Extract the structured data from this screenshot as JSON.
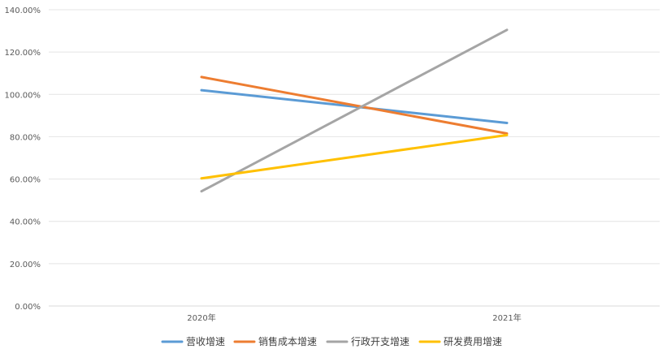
{
  "chart_data": {
    "type": "line",
    "title": "",
    "xlabel": "",
    "ylabel": "",
    "categories": [
      "2020年",
      "2021年"
    ],
    "y_ticks": [
      "0.00%",
      "20.00%",
      "40.00%",
      "60.00%",
      "80.00%",
      "100.00%",
      "120.00%",
      "140.00%"
    ],
    "ylim": [
      0,
      140
    ],
    "grid": true,
    "legend_position": "bottom",
    "series": [
      {
        "name": "营收增速",
        "values": [
          102,
          86.5
        ],
        "color": "#5B9BD5"
      },
      {
        "name": "销售成本增速",
        "values": [
          108.2,
          81.5
        ],
        "color": "#ED7D31"
      },
      {
        "name": "行政开支增速",
        "values": [
          54.2,
          130.5
        ],
        "color": "#A5A5A5"
      },
      {
        "name": "研发费用增速",
        "values": [
          60.3,
          80.8
        ],
        "color": "#FFC000"
      }
    ]
  }
}
